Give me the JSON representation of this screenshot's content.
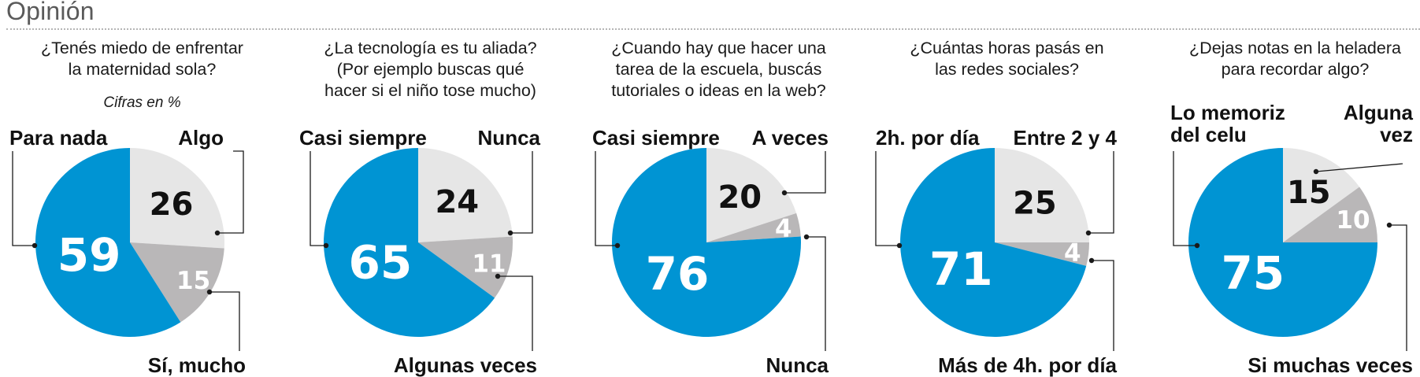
{
  "section_title": "Opinión",
  "colors": {
    "blue": "#0094D3",
    "light_gray": "#E6E6E6",
    "mid_gray": "#B9B7B8",
    "ink": "#111111"
  },
  "chart_data": [
    {
      "type": "pie",
      "title": "¿Tenés miedo de enfrentar\nla maternidad sola?",
      "note": "Cifras en %",
      "slices": [
        {
          "label": "Algo",
          "value": 26,
          "color": "#E6E6E6"
        },
        {
          "label": "Sí, mucho",
          "value": 15,
          "color": "#B9B7B8"
        },
        {
          "label": "Para nada",
          "value": 59,
          "color": "#0094D3"
        }
      ]
    },
    {
      "type": "pie",
      "title": "¿La tecnología es tu aliada?\n(Por ejemplo buscas qué\nhacer si el niño tose mucho)",
      "slices": [
        {
          "label": "Nunca",
          "value": 24,
          "color": "#E6E6E6"
        },
        {
          "label": "Algunas veces",
          "value": 11,
          "color": "#B9B7B8"
        },
        {
          "label": "Casi siempre",
          "value": 65,
          "color": "#0094D3"
        }
      ]
    },
    {
      "type": "pie",
      "title": "¿Cuando hay que hacer una\ntarea de la escuela, buscás\ntutoriales o ideas en la web?",
      "slices": [
        {
          "label": "A veces",
          "value": 20,
          "color": "#E6E6E6"
        },
        {
          "label": "Nunca",
          "value": 4,
          "color": "#B9B7B8"
        },
        {
          "label": "Casi siempre",
          "value": 76,
          "color": "#0094D3"
        }
      ]
    },
    {
      "type": "pie",
      "title": "¿Cuántas horas pasás en\nlas redes sociales?",
      "slices": [
        {
          "label": "Entre 2 y 4",
          "value": 25,
          "color": "#E6E6E6"
        },
        {
          "label": "Más de 4h. por día",
          "value": 4,
          "color": "#B9B7B8"
        },
        {
          "label": "2h. por día",
          "value": 71,
          "color": "#0094D3"
        }
      ]
    },
    {
      "type": "pie",
      "title": "¿Dejas notas en la heladera\npara recordar algo?",
      "slices": [
        {
          "label": "Alguna\nvez",
          "value": 15,
          "color": "#E6E6E6"
        },
        {
          "label": "Si muchas veces",
          "value": 10,
          "color": "#B9B7B8"
        },
        {
          "label": "Lo memoriz\ndel celu",
          "value": 75,
          "color": "#0094D3"
        }
      ]
    }
  ]
}
